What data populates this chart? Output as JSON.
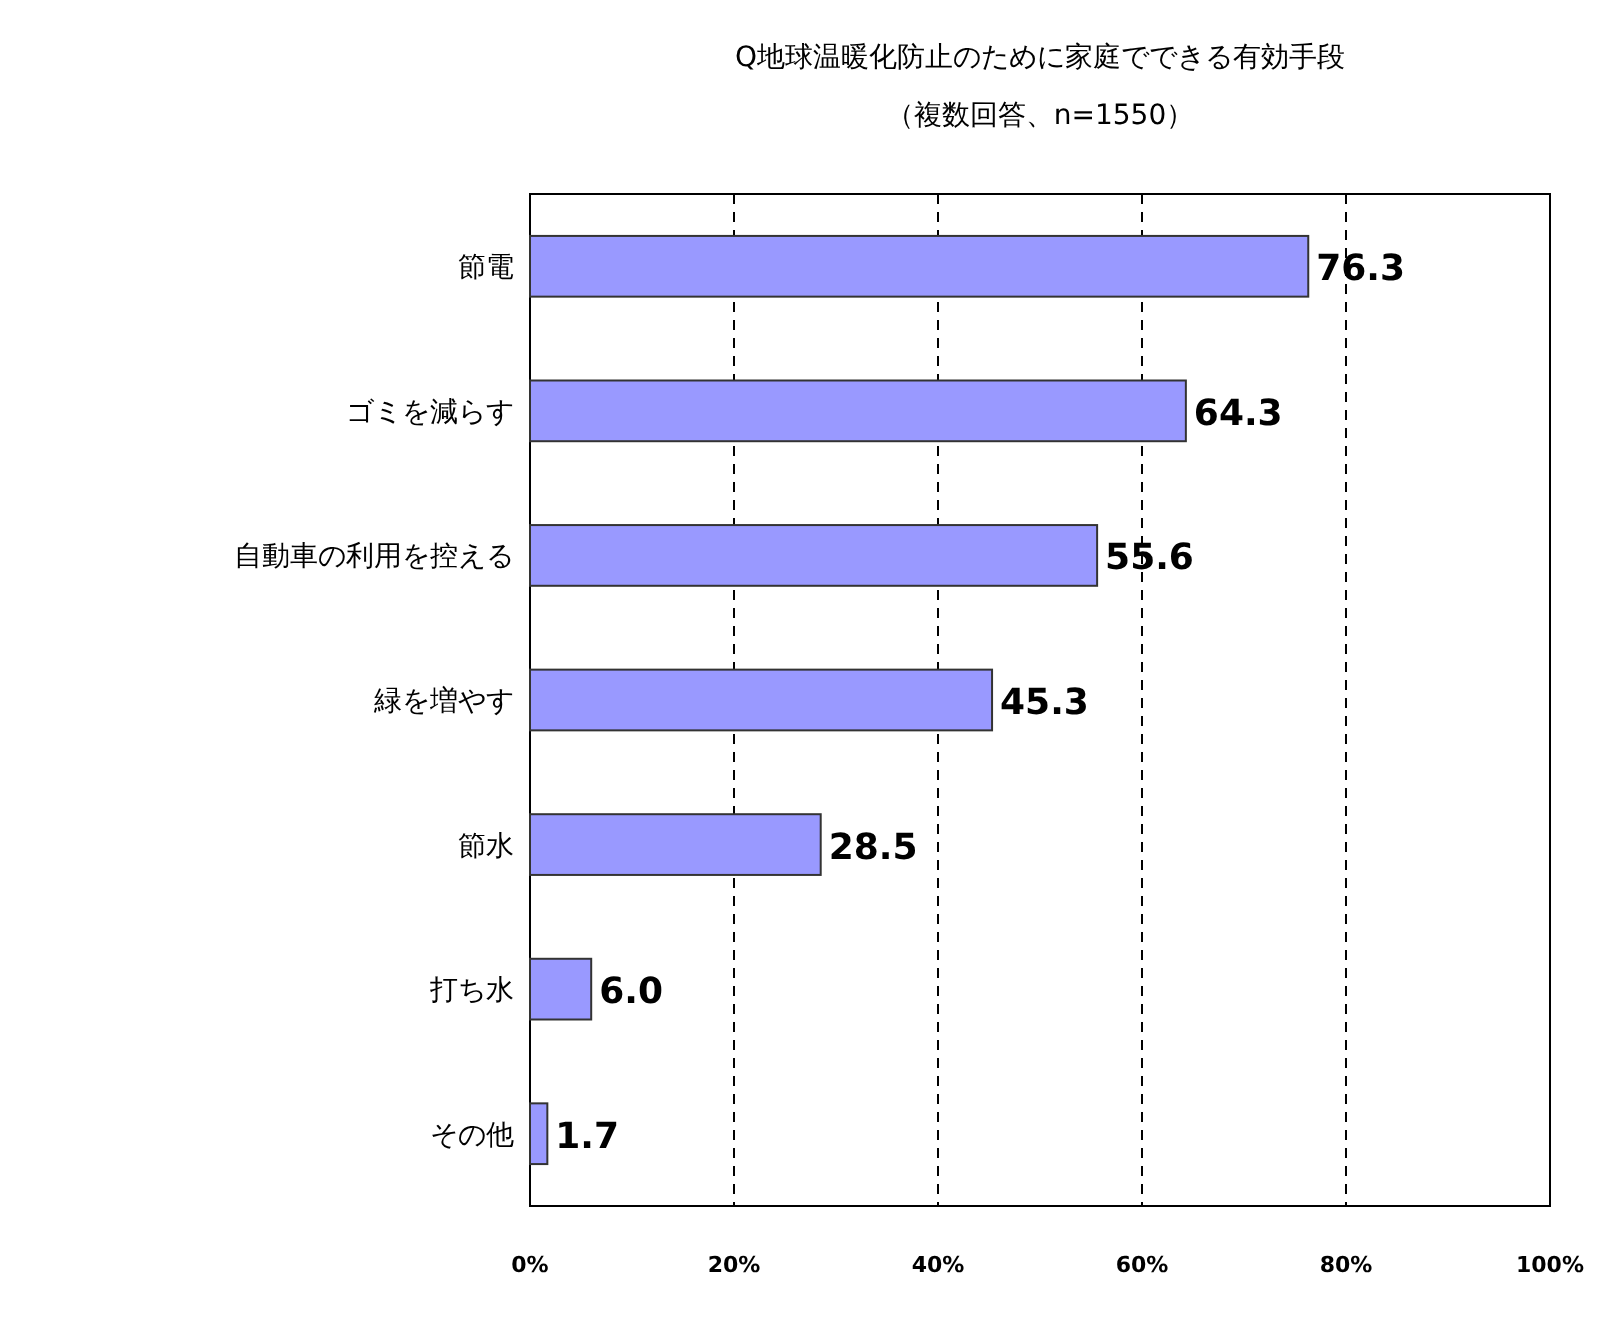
{
  "chart_data": {
    "type": "bar",
    "orientation": "horizontal",
    "title": "Q地球温暖化防止のために家庭でできる有効手段",
    "subtitle": "（複数回答、n=1550）",
    "categories": [
      "節電",
      "ゴミを減らす",
      "自動車の利用を控える",
      "緑を増やす",
      "節水",
      "打ち水",
      "その他"
    ],
    "values": [
      76.3,
      64.3,
      55.6,
      45.3,
      28.5,
      6.0,
      1.7
    ],
    "value_labels": [
      "76.3",
      "64.3",
      "55.6",
      "45.3",
      "28.5",
      "6.0",
      "1.7"
    ],
    "color": "#9999ff",
    "xlim": [
      0,
      100
    ],
    "xticks": [
      {
        "value": 0,
        "label": "0%"
      },
      {
        "value": 20,
        "label": "20%"
      },
      {
        "value": 40,
        "label": "40%"
      },
      {
        "value": 60,
        "label": "60%"
      },
      {
        "value": 80,
        "label": "80%"
      },
      {
        "value": 100,
        "label": "100%"
      }
    ],
    "grid": "x"
  }
}
